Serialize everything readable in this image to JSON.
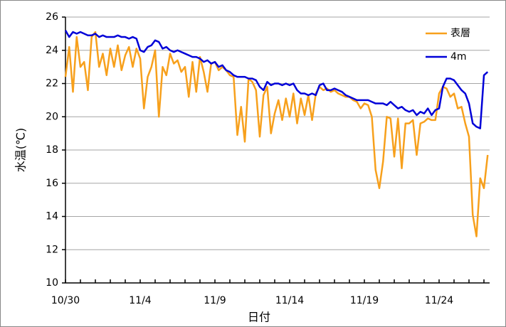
{
  "chart_data": {
    "type": "line",
    "x_label": "日付",
    "y_label": "水温(℃)",
    "categories": [
      "10/30",
      null,
      null,
      null,
      null,
      null,
      null,
      null,
      null,
      null,
      null,
      null,
      null,
      null,
      null,
      null,
      null,
      null,
      null,
      null,
      "11/4",
      null,
      null,
      null,
      null,
      null,
      null,
      null,
      null,
      null,
      null,
      null,
      null,
      null,
      null,
      null,
      null,
      null,
      null,
      null,
      "11/9",
      null,
      null,
      null,
      null,
      null,
      null,
      null,
      null,
      null,
      null,
      null,
      null,
      null,
      null,
      null,
      null,
      null,
      null,
      null,
      "11/14",
      null,
      null,
      null,
      null,
      null,
      null,
      null,
      null,
      null,
      null,
      null,
      null,
      null,
      null,
      null,
      null,
      null,
      null,
      null,
      "11/19",
      null,
      null,
      null,
      null,
      null,
      null,
      null,
      null,
      null,
      null,
      null,
      null,
      null,
      null,
      null,
      null,
      null,
      null,
      null,
      "11/24",
      null,
      null,
      null,
      null,
      null,
      null,
      null,
      null,
      null,
      null,
      null,
      null,
      null
    ],
    "series": [
      {
        "name": "表層",
        "color": "#f7a01c",
        "values": [
          22.4,
          24.2,
          21.5,
          24.8,
          23.0,
          23.3,
          21.6,
          24.8,
          25.1,
          23.0,
          23.8,
          22.5,
          24.1,
          23.0,
          24.3,
          22.8,
          23.7,
          24.2,
          23.0,
          24.1,
          23.5,
          20.5,
          22.4,
          23.0,
          24.0,
          20.0,
          23.0,
          22.5,
          23.8,
          23.2,
          23.4,
          22.7,
          23.0,
          21.2,
          23.3,
          21.5,
          23.6,
          22.7,
          21.5,
          23.2,
          23.3,
          22.8,
          23.0,
          22.8,
          22.5,
          22.4,
          18.9,
          20.6,
          18.5,
          22.3,
          22.1,
          21.6,
          18.8,
          21.3,
          21.8,
          19.0,
          20.2,
          21.0,
          19.8,
          21.1,
          20.0,
          21.4,
          19.6,
          21.1,
          20.1,
          21.3,
          19.8,
          21.4,
          21.8,
          21.6,
          21.7,
          21.5,
          21.6,
          21.4,
          21.3,
          21.2,
          21.2,
          21.0,
          20.9,
          20.5,
          20.8,
          20.7,
          20.0,
          16.8,
          15.7,
          17.3,
          20.0,
          19.9,
          17.6,
          19.9,
          16.9,
          19.6,
          19.6,
          19.8,
          17.7,
          19.6,
          19.7,
          19.9,
          19.8,
          19.8,
          21.4,
          21.8,
          21.7,
          21.2,
          21.4,
          20.5,
          20.6,
          19.6,
          18.8,
          14.1,
          12.8,
          16.3,
          15.7,
          17.7
        ]
      },
      {
        "name": "4m",
        "color": "#0000d8",
        "values": [
          25.2,
          24.8,
          25.1,
          25.0,
          25.1,
          25.0,
          24.9,
          24.9,
          25.0,
          24.8,
          24.9,
          24.8,
          24.8,
          24.8,
          24.9,
          24.8,
          24.8,
          24.7,
          24.8,
          24.7,
          24.0,
          23.9,
          24.2,
          24.3,
          24.6,
          24.5,
          24.1,
          24.2,
          24.0,
          23.9,
          24.0,
          23.9,
          23.8,
          23.7,
          23.6,
          23.6,
          23.5,
          23.3,
          23.4,
          23.2,
          23.3,
          23.0,
          23.1,
          22.8,
          22.7,
          22.5,
          22.4,
          22.4,
          22.4,
          22.3,
          22.3,
          22.2,
          21.8,
          21.6,
          22.1,
          21.9,
          22.0,
          22.0,
          21.9,
          22.0,
          21.9,
          22.0,
          21.6,
          21.4,
          21.4,
          21.3,
          21.4,
          21.3,
          21.9,
          22.0,
          21.6,
          21.6,
          21.7,
          21.6,
          21.5,
          21.3,
          21.2,
          21.1,
          21.0,
          21.0,
          21.0,
          21.0,
          20.9,
          20.8,
          20.8,
          20.8,
          20.7,
          20.9,
          20.7,
          20.5,
          20.6,
          20.4,
          20.3,
          20.4,
          20.1,
          20.3,
          20.2,
          20.5,
          20.1,
          20.4,
          20.5,
          21.8,
          22.3,
          22.3,
          22.2,
          21.9,
          21.6,
          21.4,
          20.8,
          19.6,
          19.4,
          19.3,
          22.5,
          22.7
        ]
      }
    ],
    "ylim": [
      10,
      26
    ],
    "yticks": [
      10,
      12,
      14,
      16,
      18,
      20,
      22,
      24,
      26
    ],
    "grid": true,
    "legend": "upper-right"
  }
}
